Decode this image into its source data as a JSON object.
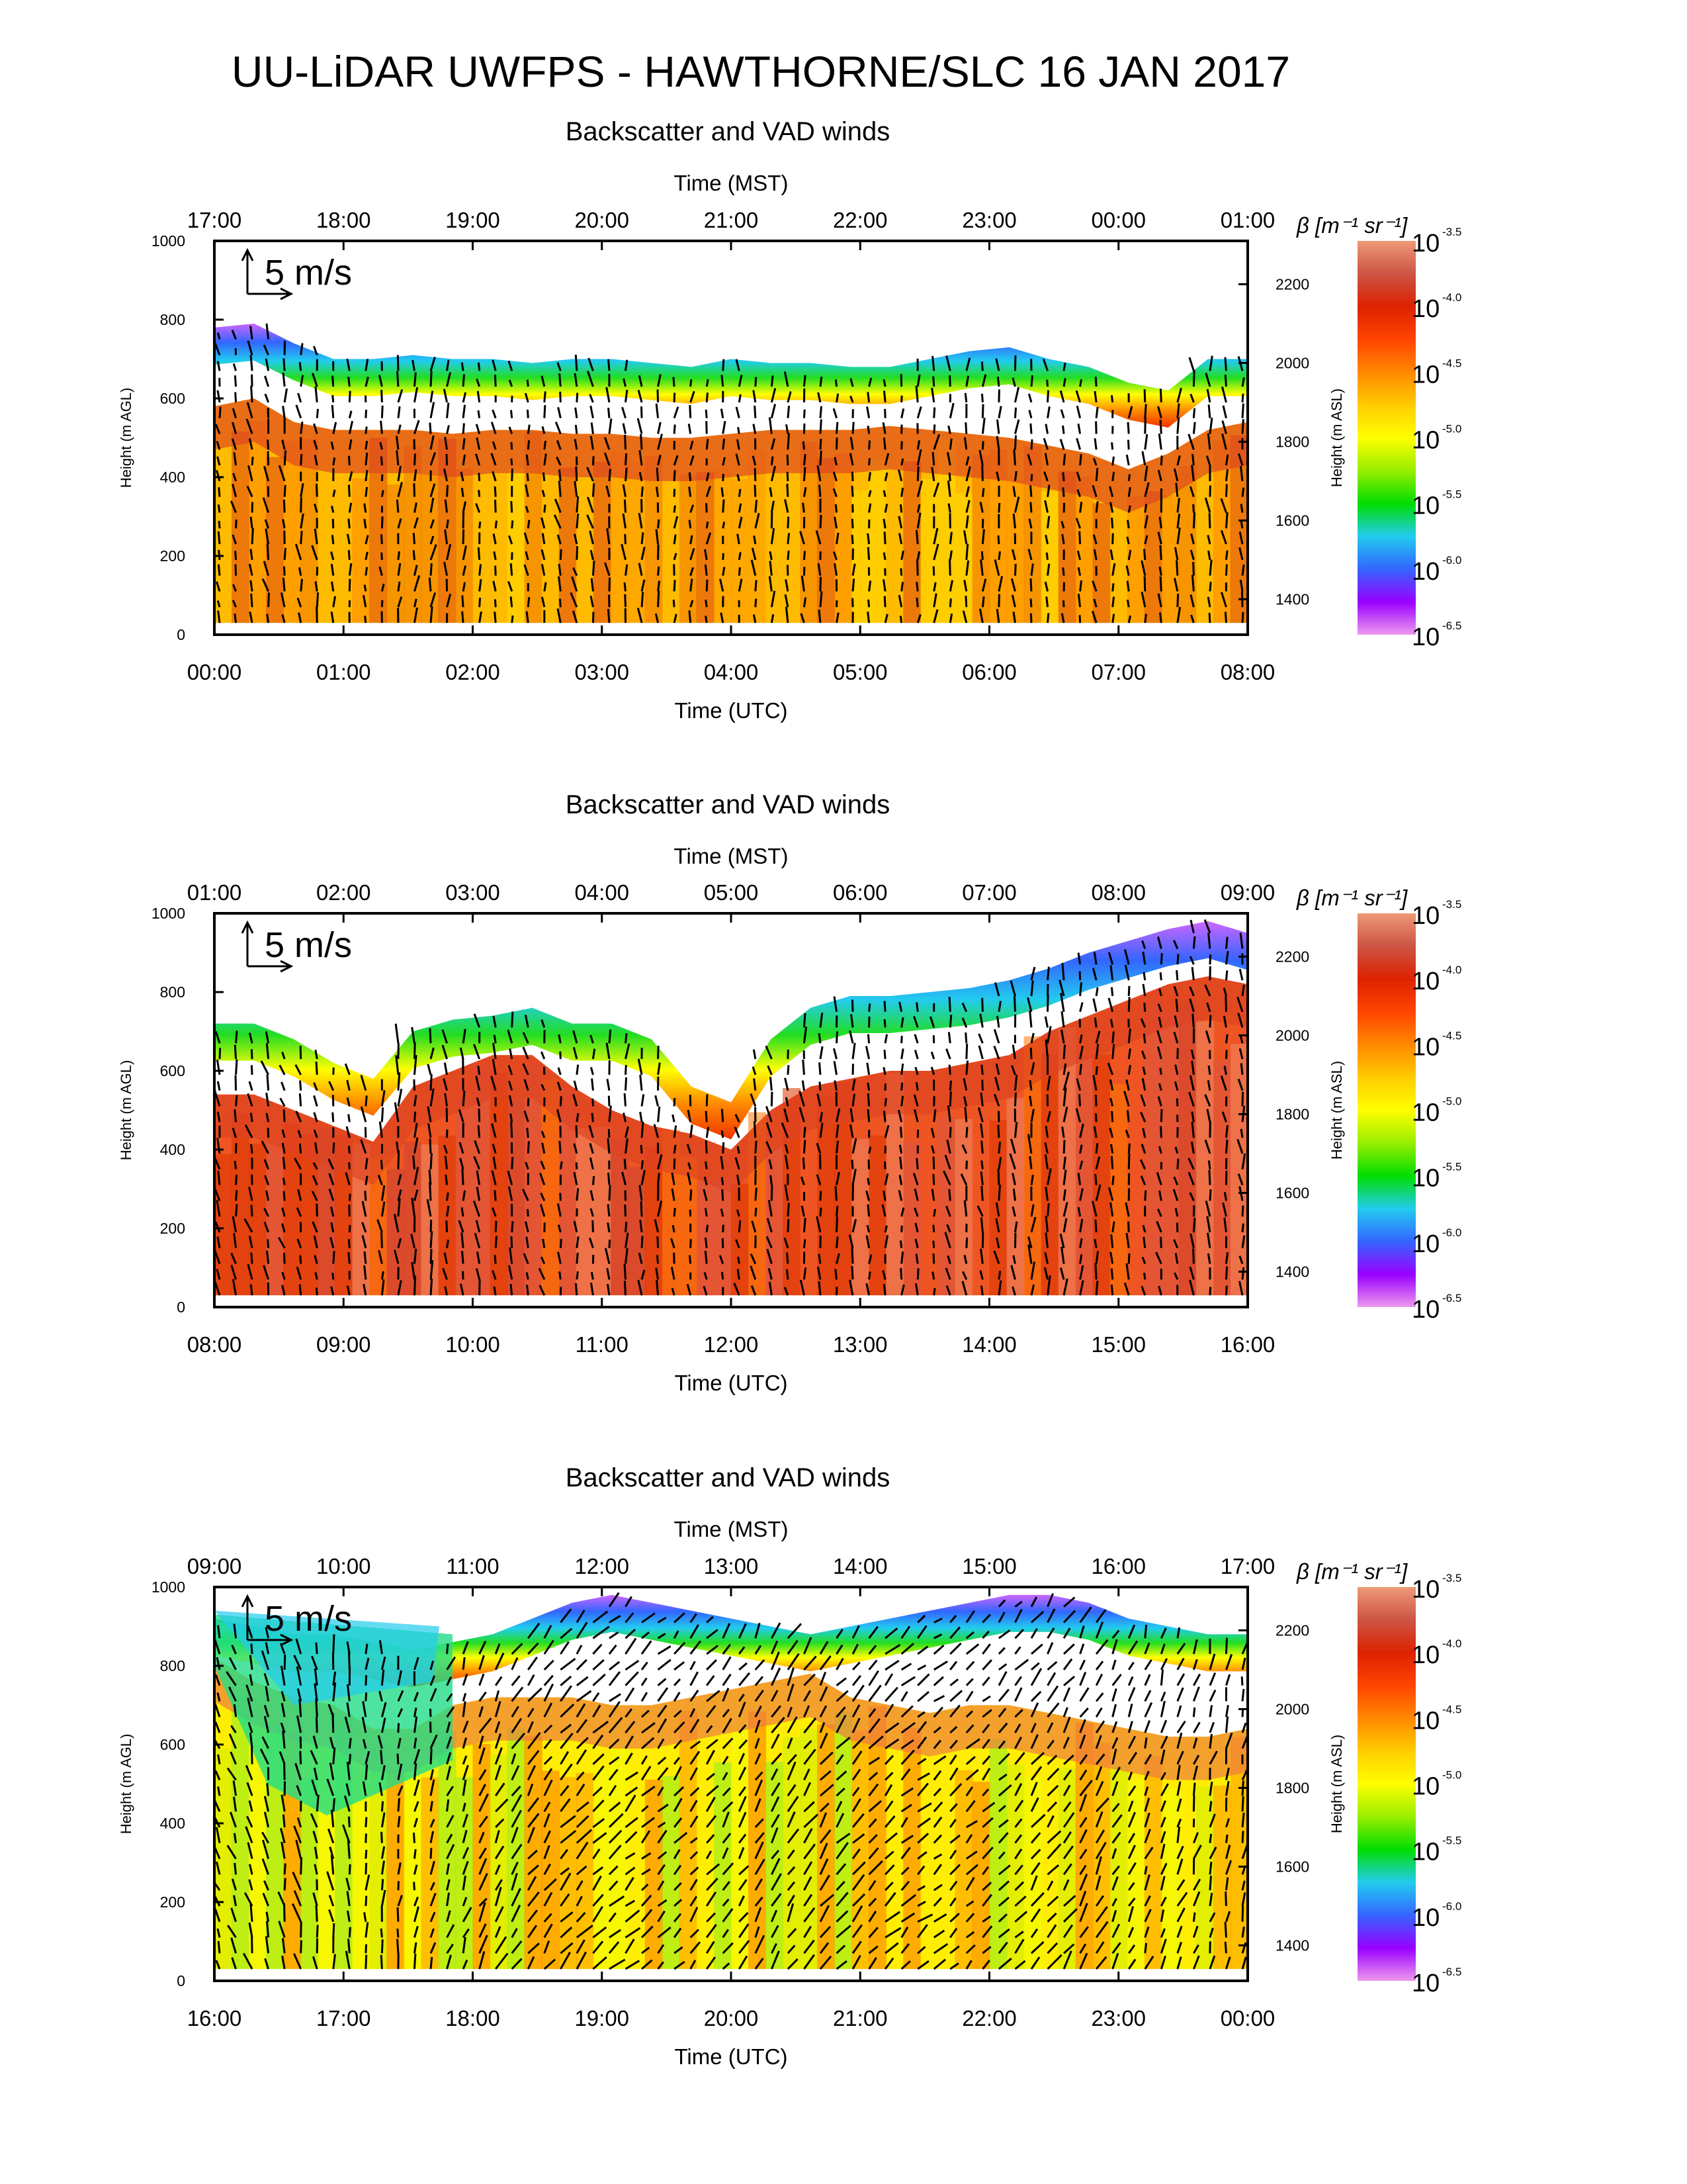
{
  "title": "UU-LiDAR UWFPS - HAWTHORNE/SLC 16 JAN 2017",
  "colors": {
    "colormap": [
      "#ee99ee",
      "#9900ff",
      "#3366ff",
      "#22ccee",
      "#00dd00",
      "#99ee00",
      "#ffff00",
      "#ffcc00",
      "#ff8800",
      "#ff4400",
      "#dd2200",
      "#cc5544",
      "#ee9977"
    ]
  },
  "colorbar": {
    "label": "β [m⁻¹ sr⁻¹]",
    "ticks": [
      {
        "base": "10",
        "exp": "-3.5"
      },
      {
        "base": "10",
        "exp": "-4.0"
      },
      {
        "base": "10",
        "exp": "-4.5"
      },
      {
        "base": "10",
        "exp": "-5.0"
      },
      {
        "base": "10",
        "exp": "-5.5"
      },
      {
        "base": "10",
        "exp": "-6.0"
      },
      {
        "base": "10",
        "exp": "-6.5"
      }
    ]
  },
  "chart_data": [
    {
      "type": "heatmap",
      "title": "Backscatter and VAD winds",
      "xlabel": "Time (UTC)",
      "x2label": "Time (MST)",
      "ylabel": "Height (m AGL)",
      "y2label": "Height (m ASL)",
      "x_ticks": [
        "00:00",
        "01:00",
        "02:00",
        "03:00",
        "04:00",
        "05:00",
        "06:00",
        "07:00",
        "08:00"
      ],
      "x2_ticks": [
        "17:00",
        "18:00",
        "19:00",
        "20:00",
        "21:00",
        "22:00",
        "23:00",
        "00:00",
        "01:00"
      ],
      "y_ticks": [
        0,
        200,
        400,
        600,
        800,
        1000
      ],
      "y2_ticks": [
        1400,
        1600,
        1800,
        2000,
        2200
      ],
      "ylim": [
        0,
        1000
      ],
      "y2lim": [
        1310,
        2310
      ],
      "wind_scale_label": "5 m/s",
      "aerosol_top_agl": [
        780,
        790,
        740,
        700,
        700,
        710,
        700,
        700,
        690,
        700,
        700,
        690,
        680,
        700,
        690,
        690,
        680,
        680,
        700,
        720,
        730,
        700,
        680,
        640,
        620,
        700,
        700
      ],
      "mixed_layer_top_agl": [
        580,
        600,
        540,
        520,
        520,
        520,
        510,
        520,
        520,
        510,
        510,
        500,
        500,
        510,
        520,
        520,
        520,
        530,
        520,
        510,
        500,
        480,
        460,
        420,
        460,
        520,
        540
      ],
      "wind_direction_deg_from": [
        170,
        170,
        175,
        180,
        180,
        185,
        180,
        175,
        175,
        170,
        175,
        180,
        185,
        180,
        180,
        175,
        175,
        180,
        185,
        180,
        180,
        175,
        175,
        180,
        180,
        175,
        175
      ],
      "wind_speed_ms": [
        4,
        5,
        5,
        4,
        4,
        5,
        5,
        4,
        4,
        5,
        5,
        5,
        4,
        4,
        5,
        5,
        4,
        4,
        5,
        5,
        5,
        4,
        4,
        4,
        5,
        5,
        5
      ]
    },
    {
      "type": "heatmap",
      "title": "Backscatter and VAD winds",
      "xlabel": "Time (UTC)",
      "x2label": "Time (MST)",
      "ylabel": "Height (m AGL)",
      "y2label": "Height (m ASL)",
      "x_ticks": [
        "08:00",
        "09:00",
        "10:00",
        "11:00",
        "12:00",
        "13:00",
        "14:00",
        "15:00",
        "16:00"
      ],
      "x2_ticks": [
        "01:00",
        "02:00",
        "03:00",
        "04:00",
        "05:00",
        "06:00",
        "07:00",
        "08:00",
        "09:00"
      ],
      "y_ticks": [
        0,
        200,
        400,
        600,
        800,
        1000
      ],
      "y2_ticks": [
        1400,
        1600,
        1800,
        2000,
        2200
      ],
      "ylim": [
        0,
        1000
      ],
      "y2lim": [
        1310,
        2310
      ],
      "wind_scale_label": "5 m/s",
      "aerosol_top_agl": [
        720,
        720,
        680,
        620,
        580,
        700,
        730,
        740,
        760,
        720,
        720,
        680,
        560,
        520,
        680,
        760,
        790,
        790,
        800,
        810,
        830,
        860,
        900,
        930,
        960,
        980,
        950
      ],
      "mixed_layer_top_agl": [
        540,
        540,
        500,
        460,
        420,
        560,
        600,
        640,
        640,
        560,
        500,
        460,
        440,
        400,
        500,
        560,
        580,
        600,
        600,
        620,
        640,
        700,
        740,
        780,
        820,
        840,
        820
      ],
      "wind_direction_deg_from": [
        170,
        165,
        165,
        170,
        175,
        180,
        175,
        170,
        170,
        175,
        180,
        180,
        175,
        170,
        170,
        175,
        180,
        180,
        175,
        170,
        175,
        180,
        180,
        175,
        170,
        170,
        175
      ],
      "wind_speed_ms": [
        5,
        5,
        4,
        4,
        5,
        6,
        5,
        5,
        4,
        4,
        5,
        5,
        4,
        4,
        5,
        5,
        5,
        4,
        4,
        5,
        5,
        6,
        5,
        5,
        4,
        5,
        5
      ]
    },
    {
      "type": "heatmap",
      "title": "Backscatter and VAD winds",
      "xlabel": "Time (UTC)",
      "x2label": "Time (MST)",
      "ylabel": "Height (m AGL)",
      "y2label": "Height (m ASL)",
      "x_ticks": [
        "16:00",
        "17:00",
        "18:00",
        "19:00",
        "20:00",
        "21:00",
        "22:00",
        "23:00",
        "00:00"
      ],
      "x2_ticks": [
        "09:00",
        "10:00",
        "11:00",
        "12:00",
        "13:00",
        "14:00",
        "15:00",
        "16:00",
        "17:00"
      ],
      "y_ticks": [
        0,
        200,
        400,
        600,
        800,
        1000
      ],
      "y2_ticks": [
        1400,
        1600,
        1800,
        2000,
        2200
      ],
      "ylim": [
        0,
        1000
      ],
      "y2lim": [
        1310,
        2310
      ],
      "wind_scale_label": "5 m/s",
      "aerosol_top_agl": [
        920,
        900,
        880,
        880,
        860,
        840,
        860,
        880,
        920,
        960,
        980,
        960,
        940,
        920,
        900,
        880,
        900,
        920,
        940,
        960,
        980,
        980,
        960,
        920,
        900,
        880,
        880
      ],
      "mixed_layer_top_agl": [
        820,
        760,
        720,
        700,
        640,
        640,
        700,
        720,
        720,
        720,
        700,
        700,
        720,
        740,
        760,
        780,
        720,
        700,
        680,
        700,
        700,
        680,
        660,
        640,
        620,
        620,
        640
      ],
      "low_beta_region": true,
      "wind_direction_deg_from": [
        160,
        165,
        170,
        175,
        180,
        190,
        200,
        210,
        215,
        220,
        225,
        225,
        220,
        215,
        210,
        215,
        220,
        225,
        230,
        225,
        220,
        215,
        210,
        205,
        200,
        195,
        190
      ],
      "wind_speed_ms": [
        5,
        6,
        6,
        6,
        5,
        5,
        5,
        6,
        6,
        6,
        6,
        5,
        5,
        5,
        6,
        6,
        6,
        6,
        5,
        5,
        5,
        6,
        6,
        5,
        5,
        5,
        5
      ]
    }
  ]
}
